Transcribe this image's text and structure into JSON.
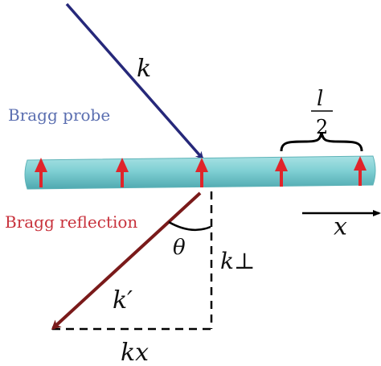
{
  "labels": {
    "incident_wavevector": "k",
    "bragg_probe": "Bragg probe",
    "period_num": "l",
    "period_den": "2",
    "bragg_reflection": "Bragg reflection",
    "axis_x": "x",
    "theta": "θ",
    "k_prime": "k′",
    "k_perp": "k⊥",
    "k_x": "kx"
  },
  "colors": {
    "incident_arrow": "#26287a",
    "reflected_arrow": "#7a1a1a",
    "probe_text": "#5a6eb0",
    "reflection_text": "#c8323c",
    "rod_fill": "#7fcfd3",
    "rod_highlight": "#a8e2e4",
    "rod_shadow": "#4fa9b0",
    "spin_arrows": "#e0242a",
    "black": "#000000"
  },
  "rod": {
    "spin_count": 5,
    "spin_direction": "up"
  }
}
